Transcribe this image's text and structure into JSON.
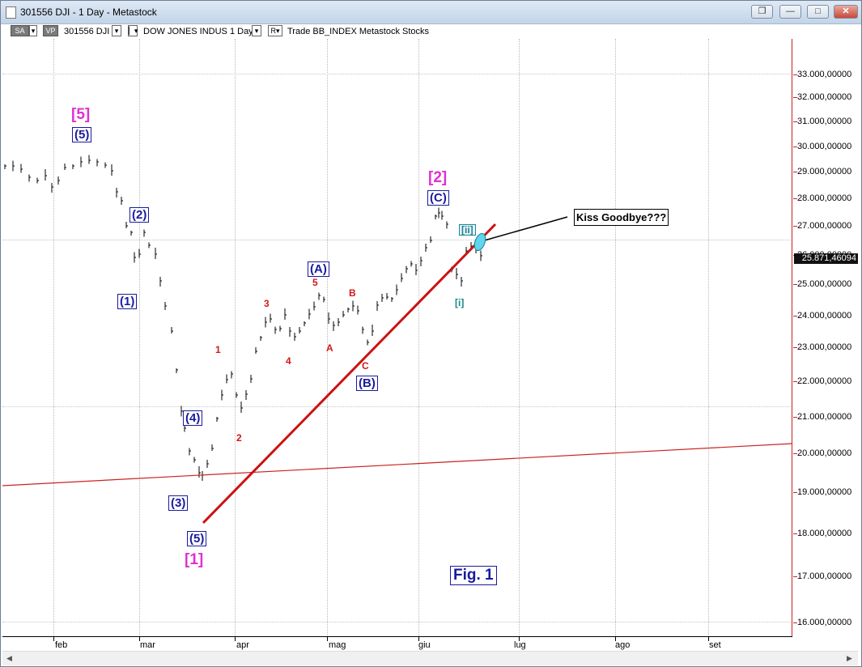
{
  "window": {
    "title": "301556 DJI - 1 Day - Metastock",
    "buttons": [
      "restore-down",
      "minimize",
      "maximize",
      "close"
    ]
  },
  "toolbar": {
    "sa": "SA",
    "vp": "VP",
    "symbol": "301556 DJI",
    "name": "DOW JONES INDUS  1 Day",
    "r": "R",
    "trade": "Trade  BB_INDEX  Metastock  Stocks"
  },
  "y_axis_labels": [
    "33.000,00000",
    "32.000,00000",
    "31.000,00000",
    "30.000,00000",
    "29.000,00000",
    "28.000,00000",
    "27.000,00000",
    "26.000,00000",
    "25.000,00000",
    "24.000,00000",
    "23.000,00000",
    "22.000,00000",
    "21.000,00000",
    "20.000,00000",
    "19.000,00000",
    "18.000,00000",
    "17.000,00000",
    "16.000,00000"
  ],
  "last_price": "25.871,46094",
  "x_axis_labels": [
    "feb",
    "mar",
    "apr",
    "mag",
    "giu",
    "lug",
    "ago",
    "set"
  ],
  "wave_labels": {
    "mag5": "[5]",
    "box5_top": "(5)",
    "box2": "(2)",
    "box1": "(1)",
    "box4": "(4)",
    "box3": "(3)",
    "box5_bot": "(5)",
    "mag1": "[1]",
    "r1": "1",
    "r2": "2",
    "r3": "3",
    "r4": "4",
    "r5": "5",
    "boxA": "(A)",
    "rA": "A",
    "rB": "B",
    "rC": "C",
    "boxB": "(B)",
    "mag2": "[2]",
    "boxC": "(C)",
    "tii": "[ii]",
    "ti": "[i]"
  },
  "annotation": "Kiss Goodbye???",
  "figure_label": "Fig. 1",
  "colors": {
    "wave_box": "#1a1aa0",
    "minor_red": "#d01818",
    "major_magenta": "#e030d0",
    "trendline": "#cc1111",
    "teal": "#158a8a"
  }
}
